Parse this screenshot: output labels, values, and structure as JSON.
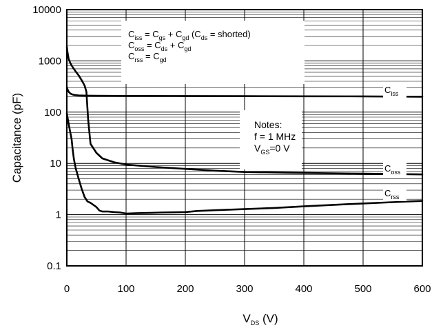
{
  "chart_data": {
    "type": "line",
    "xlabel": {
      "main": "V",
      "sub": "DS",
      "unit": " (V)"
    },
    "ylabel": "Capacitance (pF)",
    "xlim": [
      0,
      600
    ],
    "ylim": [
      0.1,
      10000
    ],
    "yscale": "log",
    "grid": true,
    "x_ticks": [
      "0",
      "100",
      "200",
      "300",
      "400",
      "500",
      "600"
    ],
    "y_ticks": [
      "0.1",
      "1",
      "10",
      "100",
      "1000",
      "10000"
    ],
    "series": [
      {
        "name": {
          "main": "C",
          "sub": "iss"
        },
        "x": [
          0,
          1,
          3,
          6,
          10,
          15,
          20,
          30,
          50,
          100,
          200,
          300,
          400,
          500,
          600
        ],
        "y": [
          310,
          280,
          250,
          230,
          220,
          215,
          212,
          210,
          208,
          207,
          206,
          205,
          204,
          203,
          200
        ]
      },
      {
        "name": {
          "main": "C",
          "sub": "oss"
        },
        "x": [
          0,
          1,
          3,
          6,
          10,
          15,
          20,
          25,
          30,
          33,
          36,
          40,
          50,
          60,
          80,
          100,
          150,
          200,
          250,
          300,
          400,
          500,
          600
        ],
        "y": [
          1900,
          1500,
          1100,
          900,
          750,
          620,
          520,
          420,
          330,
          250,
          70,
          24,
          16,
          12.5,
          10.5,
          9.5,
          8.5,
          7.8,
          7.2,
          6.8,
          6.5,
          6.3,
          6.1
        ]
      },
      {
        "name": {
          "main": "C",
          "sub": "rss"
        },
        "x": [
          0,
          1,
          3,
          5,
          8,
          10,
          12,
          15,
          20,
          25,
          30,
          35,
          40,
          50,
          55,
          60,
          70,
          80,
          90,
          100,
          120,
          140,
          160,
          200,
          220,
          250,
          300,
          350,
          400,
          450,
          500,
          550,
          600
        ],
        "y": [
          95,
          80,
          60,
          45,
          30,
          18,
          12,
          8,
          5,
          3.2,
          2.2,
          1.8,
          1.7,
          1.4,
          1.2,
          1.15,
          1.15,
          1.12,
          1.1,
          1.05,
          1.07,
          1.08,
          1.1,
          1.12,
          1.18,
          1.22,
          1.28,
          1.35,
          1.45,
          1.55,
          1.65,
          1.75,
          1.85
        ]
      }
    ],
    "annotations": {
      "definitions": [
        [
          [
            "C",
            ""
          ],
          [
            "iss",
            "sub"
          ],
          [
            " = C",
            ""
          ],
          [
            "gs",
            "sub"
          ],
          [
            " + C",
            ""
          ],
          [
            "gd",
            "sub"
          ],
          [
            " (C",
            ""
          ],
          [
            "ds",
            "sub"
          ],
          [
            " = shorted)",
            ""
          ]
        ],
        [
          [
            "C",
            ""
          ],
          [
            "oss",
            "sub"
          ],
          [
            " = C",
            ""
          ],
          [
            "ds",
            "sub"
          ],
          [
            " + C",
            ""
          ],
          [
            "gd",
            "sub"
          ]
        ],
        [
          [
            "C",
            ""
          ],
          [
            "rss",
            "sub"
          ],
          [
            " = C",
            ""
          ],
          [
            "gd",
            "sub"
          ]
        ]
      ],
      "notes": [
        [
          [
            "Notes:",
            ""
          ]
        ],
        [
          [
            "f = 1 MHz",
            ""
          ]
        ],
        [
          [
            "V",
            ""
          ],
          [
            "GS",
            "sub"
          ],
          [
            "=0 V",
            ""
          ]
        ]
      ]
    },
    "colors": {
      "line": "#000000",
      "grid": "#000000",
      "background": "#ffffff"
    }
  }
}
